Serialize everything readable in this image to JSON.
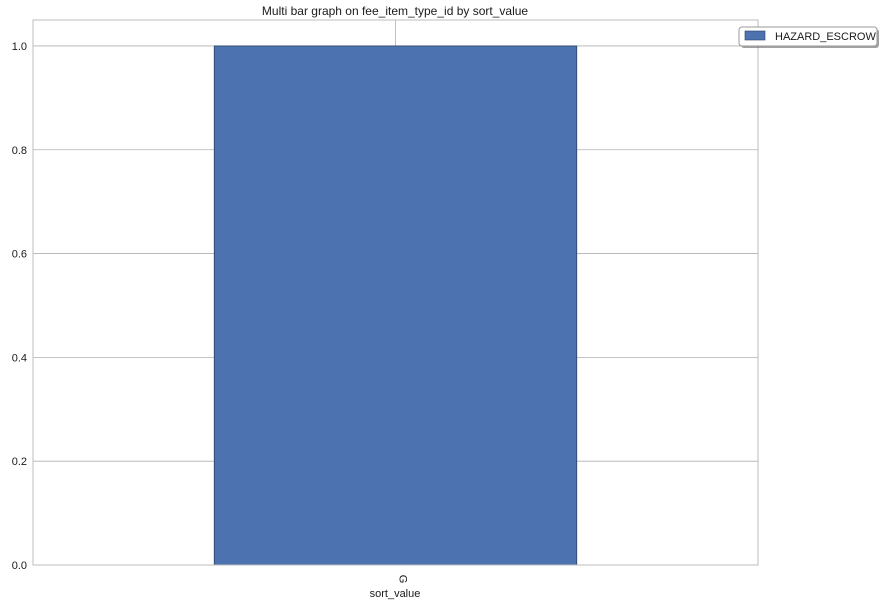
{
  "chart_data": {
    "type": "bar",
    "title": "Multi bar graph on fee_item_type_id by sort_value",
    "xlabel": "sort_value",
    "ylabel": "",
    "categories": [
      "G"
    ],
    "series": [
      {
        "name": "HAZARD_ESCROW",
        "values": [
          1.0
        ]
      }
    ],
    "ylim": [
      0,
      1.05
    ],
    "yticks": [
      "0.0",
      "0.2",
      "0.4",
      "0.6",
      "0.8",
      "1.0"
    ],
    "grid": true,
    "legend_position": "top-right",
    "colors": {
      "bar": "#4C72B0",
      "bar_edge": "#2a3f66",
      "grid": "#b0b0b0",
      "frame": "#bcbcbc"
    }
  }
}
